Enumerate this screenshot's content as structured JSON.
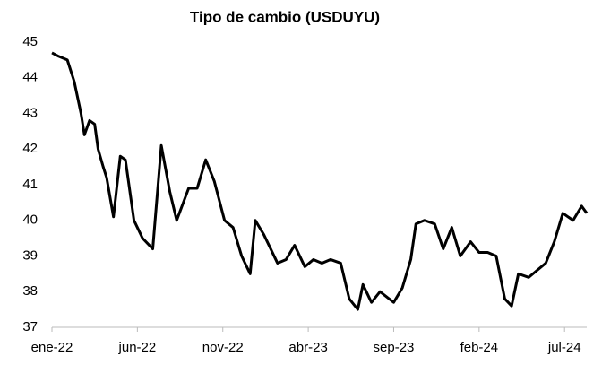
{
  "chart_data": {
    "type": "line",
    "title": "Tipo de cambio (USDUYU)",
    "x": [
      0,
      0.4,
      0.9,
      1.3,
      1.7,
      1.9,
      2.2,
      2.5,
      2.7,
      3.0,
      3.2,
      3.6,
      4.0,
      4.3,
      4.8,
      5.3,
      5.9,
      6.4,
      6.9,
      7.3,
      8.0,
      8.5,
      9.0,
      9.5,
      10.1,
      10.6,
      11.1,
      11.6,
      11.9,
      12.4,
      13.2,
      13.7,
      14.2,
      14.8,
      15.3,
      15.8,
      16.3,
      16.9,
      17.4,
      17.9,
      18.2,
      18.7,
      19.2,
      20.0,
      20.5,
      21.0,
      21.3,
      21.8,
      22.4,
      22.9,
      23.4,
      23.9,
      24.5,
      25.0,
      25.5,
      26.0,
      26.5,
      26.9,
      27.3,
      27.9,
      28.4,
      28.9,
      29.4,
      29.9,
      30.5,
      31.0,
      31.3
    ],
    "series": [
      {
        "color": "#000000",
        "values": [
          44.7,
          44.6,
          44.5,
          43.9,
          43.0,
          42.4,
          42.8,
          42.7,
          42.0,
          41.5,
          41.2,
          40.1,
          41.8,
          41.7,
          40.0,
          39.5,
          39.2,
          42.1,
          40.8,
          40.0,
          40.9,
          40.9,
          41.7,
          41.1,
          40.0,
          39.8,
          39.0,
          38.5,
          40.0,
          39.6,
          38.8,
          38.9,
          39.3,
          38.7,
          38.9,
          38.8,
          38.9,
          38.8,
          37.8,
          37.5,
          38.2,
          37.7,
          38.0,
          37.7,
          38.1,
          38.9,
          39.9,
          40.0,
          39.9,
          39.2,
          39.8,
          39.0,
          39.4,
          39.1,
          39.1,
          39.0,
          37.8,
          37.6,
          38.5,
          38.4,
          38.6,
          38.8,
          39.4,
          40.2,
          40.0,
          40.4,
          40.2
        ]
      }
    ],
    "xlim": [
      0,
      31.3
    ],
    "xticks": [
      {
        "value": 0,
        "label": "ene-22"
      },
      {
        "value": 5,
        "label": "jun-22"
      },
      {
        "value": 10,
        "label": "nov-22"
      },
      {
        "value": 15,
        "label": "abr-23"
      },
      {
        "value": 20,
        "label": "sep-23"
      },
      {
        "value": 25,
        "label": "feb-24"
      },
      {
        "value": 30,
        "label": "jul-24"
      }
    ],
    "ylim": [
      37,
      45
    ],
    "yticks": [
      37,
      38,
      39,
      40,
      41,
      42,
      43,
      44,
      45
    ],
    "grid": false
  }
}
